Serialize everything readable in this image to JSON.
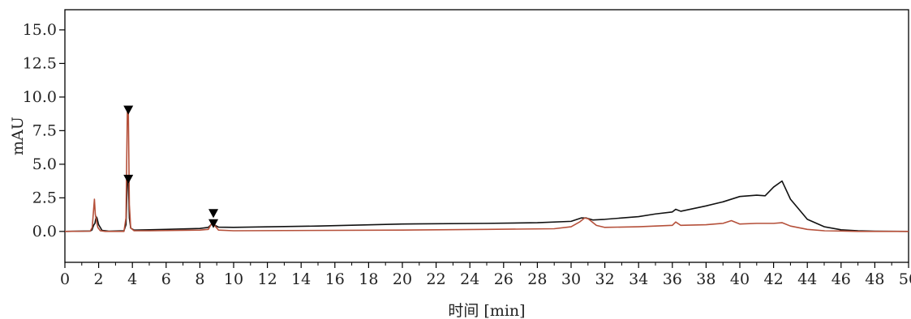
{
  "chart_data": {
    "type": "line",
    "xlabel": "时间 [min]",
    "ylabel": "mAU",
    "xlim": [
      0,
      50
    ],
    "ylim": [
      -2.3,
      16.5
    ],
    "x_ticks": [
      "0",
      "2",
      "4",
      "6",
      "8",
      "10",
      "12",
      "14",
      "16",
      "18",
      "20",
      "22",
      "24",
      "26",
      "28",
      "30",
      "32",
      "34",
      "36",
      "38",
      "40",
      "42",
      "44",
      "46",
      "48",
      "50"
    ],
    "y_ticks": [
      "0.0",
      "2.5",
      "5.0",
      "7.5",
      "10.0",
      "12.5",
      "15.0"
    ],
    "grid": false,
    "series": [
      {
        "color": "#111111",
        "x": [
          0,
          1.5,
          1.6,
          1.72,
          1.78,
          1.85,
          1.9,
          2.0,
          2.2,
          2.6,
          3.5,
          3.62,
          3.7,
          3.76,
          3.82,
          3.9,
          4.1,
          5,
          6,
          8,
          8.5,
          8.7,
          8.8,
          8.9,
          9.1,
          10,
          15,
          20,
          25,
          28,
          30,
          30.6,
          30.9,
          31.3,
          32,
          34,
          35,
          36,
          36.2,
          36.5,
          38,
          39,
          40,
          41,
          41.5,
          42,
          42.5,
          43,
          44,
          45,
          46,
          47,
          48,
          50
        ],
        "y": [
          0,
          0.03,
          0.1,
          0.5,
          0.6,
          1.1,
          1.0,
          0.5,
          0.08,
          0.02,
          0.05,
          0.5,
          3.8,
          3.9,
          1.0,
          0.25,
          0.1,
          0.12,
          0.15,
          0.22,
          0.3,
          0.55,
          0.55,
          0.45,
          0.32,
          0.3,
          0.4,
          0.55,
          0.6,
          0.65,
          0.75,
          1.0,
          1.0,
          0.85,
          0.9,
          1.1,
          1.3,
          1.45,
          1.65,
          1.5,
          1.9,
          2.2,
          2.6,
          2.7,
          2.65,
          3.3,
          3.75,
          2.4,
          0.9,
          0.35,
          0.12,
          0.05,
          0.02,
          0.0
        ]
      },
      {
        "color": "#b5503a",
        "x": [
          0,
          1.5,
          1.62,
          1.7,
          1.75,
          1.8,
          1.87,
          1.95,
          2.1,
          2.4,
          3.5,
          3.62,
          3.7,
          3.76,
          3.82,
          3.9,
          4.1,
          5,
          8,
          8.5,
          8.7,
          8.8,
          8.9,
          9.1,
          10,
          20,
          25,
          29,
          30,
          30.5,
          30.8,
          31,
          31.5,
          32,
          34,
          35,
          36,
          36.2,
          36.5,
          38,
          39,
          39.5,
          40,
          41,
          42,
          42.5,
          43,
          44,
          45,
          46,
          47,
          50
        ],
        "y": [
          0,
          0.02,
          0.3,
          1.6,
          2.4,
          1.3,
          0.8,
          0.3,
          0.05,
          0.0,
          0.0,
          1.0,
          8.9,
          8.9,
          2.0,
          0.25,
          0.05,
          0.05,
          0.1,
          0.15,
          0.6,
          0.75,
          0.4,
          0.1,
          0.05,
          0.1,
          0.15,
          0.2,
          0.35,
          0.7,
          1.0,
          0.95,
          0.45,
          0.3,
          0.35,
          0.4,
          0.45,
          0.7,
          0.45,
          0.5,
          0.6,
          0.8,
          0.55,
          0.6,
          0.6,
          0.65,
          0.4,
          0.15,
          0.05,
          0.03,
          0.0,
          0.0
        ]
      }
    ],
    "markers": [
      {
        "x": 3.76,
        "y": 9.0
      },
      {
        "x": 3.76,
        "y": 3.85
      },
      {
        "x": 8.8,
        "y": 1.3
      },
      {
        "x": 8.8,
        "y": 0.55
      }
    ]
  }
}
